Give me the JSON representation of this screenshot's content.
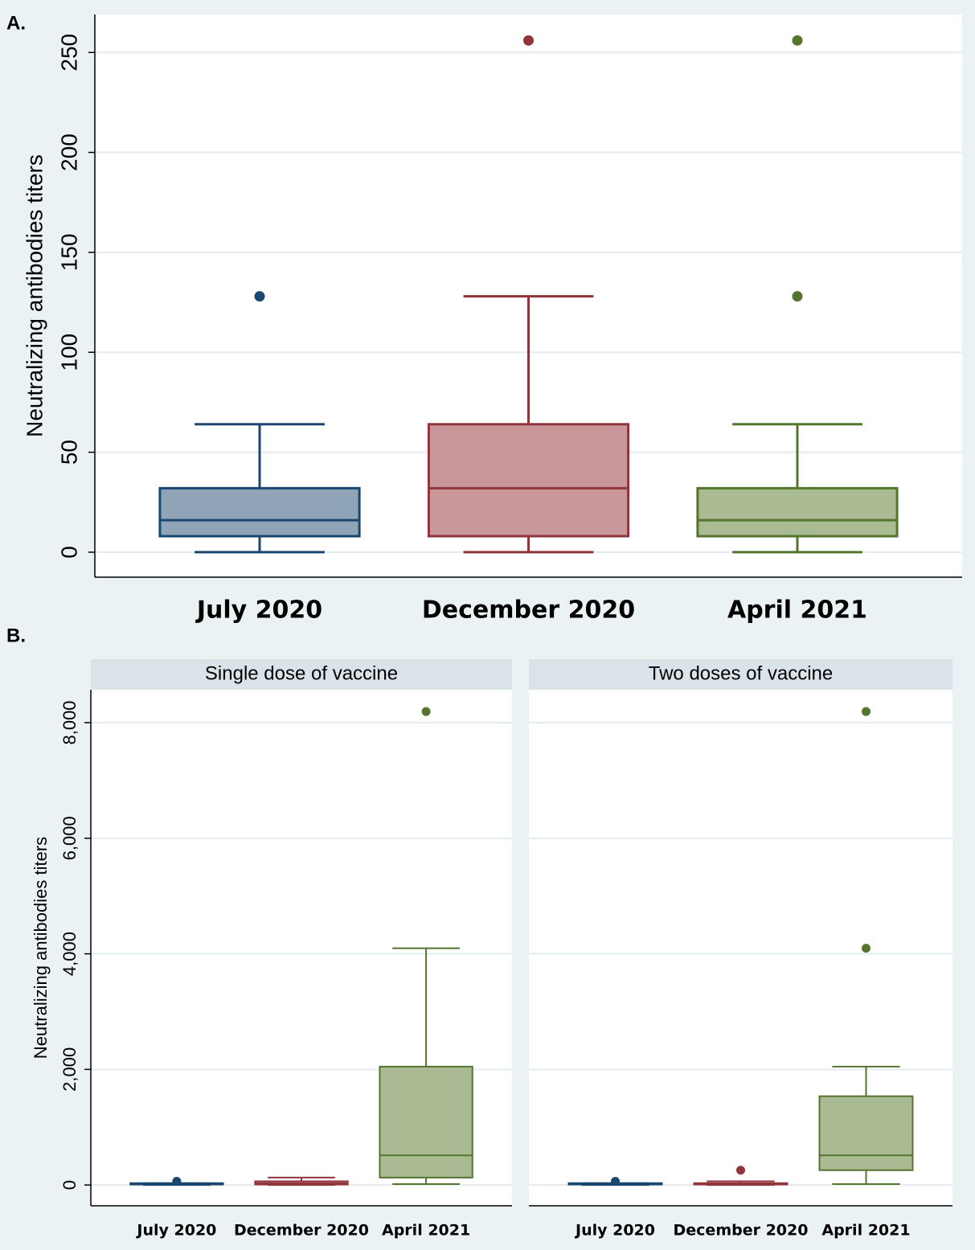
{
  "chart_data": [
    {
      "type": "box",
      "panel_label": "A.",
      "ylabel": "Neutralizing antibodies titers",
      "categories": [
        "July 2020",
        "December 2020",
        "April 2021"
      ],
      "boxes": [
        {
          "color": "#1a476f",
          "fill": "#90a4b8",
          "min": 0,
          "q1": 8,
          "median": 16,
          "q3": 32,
          "max": 64,
          "outliers": [
            128
          ]
        },
        {
          "color": "#90353b",
          "fill": "#c9969a",
          "min": 0,
          "q1": 8,
          "median": 32,
          "q3": 64,
          "max": 128,
          "outliers": [
            256
          ]
        },
        {
          "color": "#55752f",
          "fill": "#aabb94",
          "min": 0,
          "q1": 8,
          "median": 16,
          "q3": 32,
          "max": 64,
          "outliers": [
            128,
            256
          ]
        }
      ],
      "ylim": [
        -12.5,
        269
      ],
      "yticks": [
        0,
        50,
        100,
        150,
        200,
        250
      ],
      "grid": true
    },
    {
      "type": "box",
      "panel_label": "B.",
      "title": "Single dose of vaccine",
      "ylabel": "Neutralizing antibodies titers",
      "categories": [
        "July 2020",
        "December 2020",
        "April 2021"
      ],
      "boxes": [
        {
          "color": "#1a476f",
          "fill": "#90a4b8",
          "min": 0,
          "q1": 8,
          "median": 16,
          "q3": 32,
          "max": 32,
          "outliers": [
            64
          ]
        },
        {
          "color": "#90353b",
          "fill": "#c9969a",
          "min": 0,
          "q1": 8,
          "median": 32,
          "q3": 64,
          "max": 128,
          "outliers": []
        },
        {
          "color": "#55752f",
          "fill": "#aabb94",
          "min": 16,
          "q1": 128,
          "median": 512,
          "q3": 2048,
          "max": 4096,
          "outliers": [
            8192
          ]
        }
      ],
      "ylim": [
        -360,
        8570
      ],
      "yticks": [
        0,
        {
          "value": 2000,
          "label": "2,000"
        },
        {
          "value": 4000,
          "label": "4,000"
        },
        {
          "value": 6000,
          "label": "6,000"
        },
        {
          "value": 8000,
          "label": "8,000"
        }
      ],
      "grid": true
    },
    {
      "type": "box",
      "title": "Two doses of vaccine",
      "categories": [
        "July 2020",
        "December 2020",
        "April 2021"
      ],
      "boxes": [
        {
          "color": "#1a476f",
          "fill": "#90a4b8",
          "min": 0,
          "q1": 8,
          "median": 16,
          "q3": 32,
          "max": 32,
          "outliers": [
            64
          ]
        },
        {
          "color": "#90353b",
          "fill": "#c9969a",
          "min": 0,
          "q1": 8,
          "median": 16,
          "q3": 32,
          "max": 64,
          "outliers": [
            256
          ]
        },
        {
          "color": "#55752f",
          "fill": "#aabb94",
          "min": 16,
          "q1": 256,
          "median": 512,
          "q3": 1536,
          "max": 2048,
          "outliers": [
            4096,
            8192
          ]
        }
      ],
      "ylim": [
        -360,
        8570
      ],
      "grid": true
    }
  ]
}
